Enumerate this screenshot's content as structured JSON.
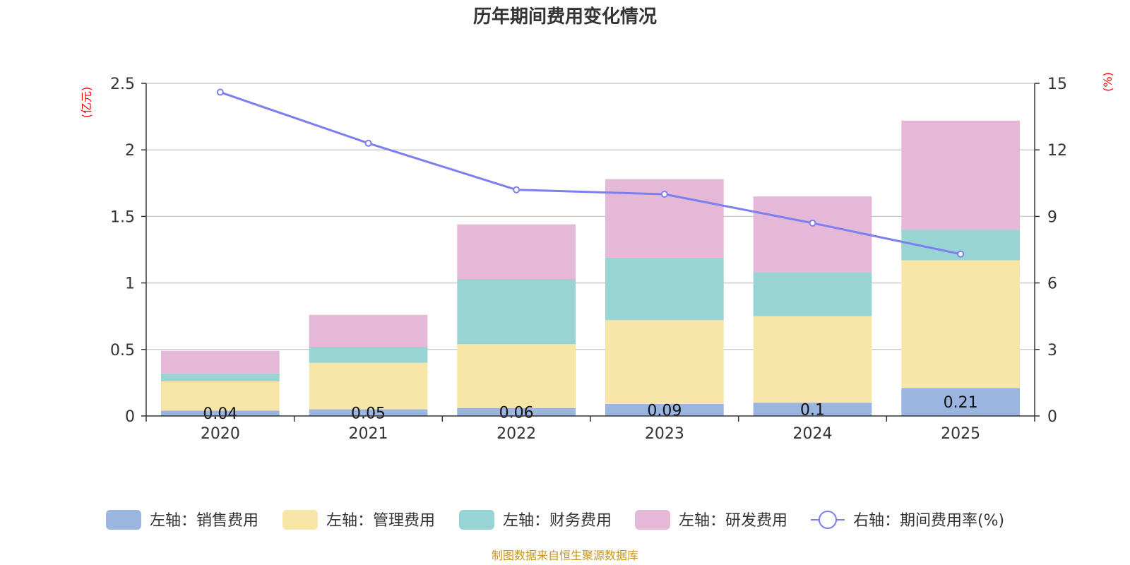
{
  "chart_data": {
    "type": "bar",
    "title": "历年期间费用变化情况",
    "categories": [
      "2020",
      "2021",
      "2022",
      "2023",
      "2024",
      "2025"
    ],
    "left_axis": {
      "unit": "(亿元)",
      "ylim": [
        0,
        2.5
      ],
      "ticks": [
        "0",
        "0.5",
        "1",
        "1.5",
        "2",
        "2.5"
      ]
    },
    "right_axis": {
      "unit": "(%)",
      "ylim": [
        0,
        15
      ],
      "ticks": [
        "0",
        "3",
        "6",
        "9",
        "12",
        "15"
      ]
    },
    "series": [
      {
        "name": "左轴：销售费用",
        "values": [
          0.04,
          0.05,
          0.06,
          0.09,
          0.1,
          0.21
        ],
        "color": "#9ab5e0",
        "labels": [
          "0.04",
          "0.05",
          "0.06",
          "0.09",
          "0.1",
          "0.21"
        ]
      },
      {
        "name": "左轴：管理费用",
        "values": [
          0.22,
          0.35,
          0.48,
          0.63,
          0.65,
          0.96
        ],
        "color": "#f7e6a8"
      },
      {
        "name": "左轴：财务费用",
        "values": [
          0.06,
          0.12,
          0.49,
          0.47,
          0.33,
          0.23
        ],
        "color": "#98d4d4"
      },
      {
        "name": "左轴：研发费用",
        "values": [
          0.17,
          0.24,
          0.41,
          0.59,
          0.57,
          0.82
        ],
        "color": "#e6b8d8"
      }
    ],
    "line_series": {
      "name": "右轴：期间费用率(%)",
      "values": [
        14.6,
        12.3,
        10.2,
        10.0,
        8.7,
        7.3
      ],
      "color": "#7b7fef"
    },
    "source": "制图数据来自恒生聚源数据库"
  }
}
